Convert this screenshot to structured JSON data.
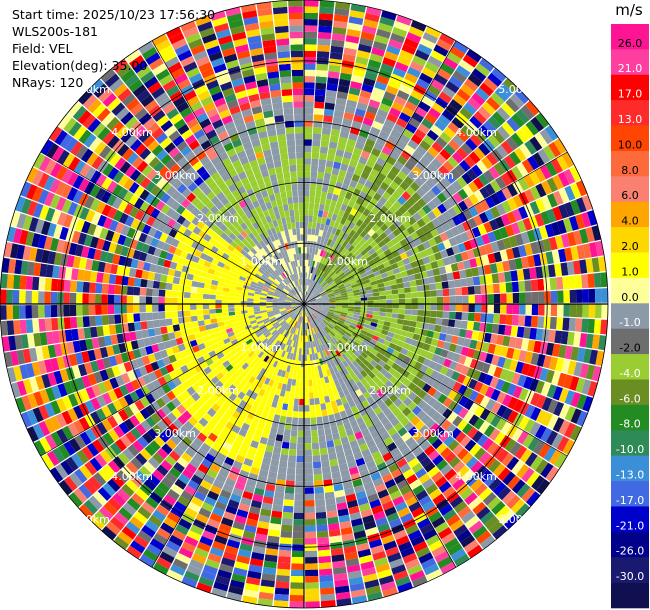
{
  "header": {
    "start_time": "Start time: 2025/10/23 17:56:30",
    "instrument": "WLS200s-181",
    "field": "Field: VEL",
    "elevation": "Elevation(deg): 35.00",
    "nrays": "NRays: 120"
  },
  "chart_data": {
    "type": "heatmap",
    "projection": "polar-ppi",
    "field": "VEL",
    "units": "m/s",
    "elevation_deg": 35.0,
    "n_rays": 120,
    "max_range_km": 5.0,
    "range_rings_km": [
      1,
      2,
      3,
      4,
      5
    ],
    "range_labels": [
      "1.00km",
      "2.00km",
      "3.00km",
      "4.00km",
      "5.00km"
    ],
    "radials_deg": [
      0,
      30,
      60,
      90,
      120,
      150,
      180,
      210,
      240,
      270,
      300,
      330
    ],
    "colorbar": {
      "label": "m/s",
      "tick_labels": [
        "26.0",
        "21.0",
        "17.0",
        "13.0",
        "10.0",
        "8.0",
        "6.0",
        "4.0",
        "2.0",
        "1.0",
        "0.0",
        "-1.0",
        "-2.0",
        "-4.0",
        "-6.0",
        "-8.0",
        "-10.0",
        "-13.0",
        "-17.0",
        "-21.0",
        "-26.0",
        "-30.0"
      ],
      "colors": [
        "#ff1493",
        "#ff3fa0",
        "#ff0000",
        "#ff2a2a",
        "#ff4500",
        "#ff6a3c",
        "#fa8072",
        "#ffa500",
        "#ffd700",
        "#ffff00",
        "#ffff99",
        "#8c9aa8",
        "#6e6e6e",
        "#9acd32",
        "#6b8e23",
        "#228b22",
        "#2e8b57",
        "#3a8fd8",
        "#4169e1",
        "#0000cd",
        "#00008b",
        "#191970",
        "#101050"
      ]
    },
    "pattern": {
      "clear_air_inner_range_km": 2.7,
      "noise_outer_range_km": 5.0,
      "approaching_sector": "west/south-west (yellow, +1 to +4 m/s)",
      "receding_sector": "north-east/east (green, -1 to -2 m/s)"
    }
  }
}
